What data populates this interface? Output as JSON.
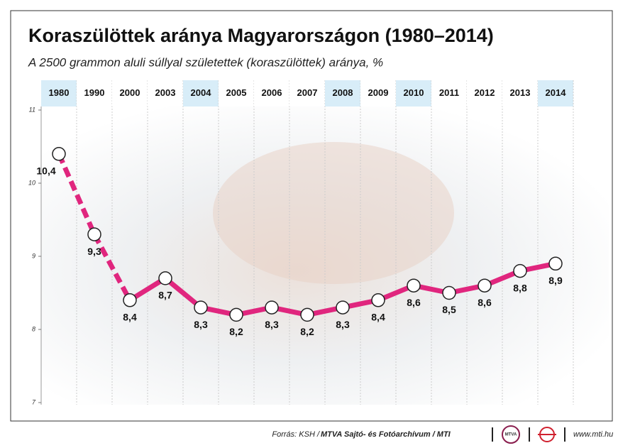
{
  "chart_data": {
    "type": "line",
    "title": "Koraszülöttek aránya Magyarországon (1980–2014)",
    "subtitle": "A 2500 grammon aluli súllyal születettek (koraszülöttek) aránya, %",
    "categories": [
      "1980",
      "1990",
      "2000",
      "2003",
      "2004",
      "2005",
      "2006",
      "2007",
      "2008",
      "2009",
      "2010",
      "2011",
      "2012",
      "2013",
      "2014"
    ],
    "header_highlight": [
      true,
      false,
      false,
      false,
      true,
      false,
      false,
      false,
      true,
      false,
      true,
      false,
      false,
      false,
      true
    ],
    "values": [
      10.4,
      9.3,
      8.4,
      8.7,
      8.3,
      8.2,
      8.3,
      8.2,
      8.3,
      8.4,
      8.6,
      8.5,
      8.6,
      8.8,
      8.9
    ],
    "value_labels": [
      "10,4",
      "9,3",
      "8,4",
      "8,7",
      "8,3",
      "8,2",
      "8,3",
      "8,2",
      "8,3",
      "8,4",
      "8,6",
      "8,5",
      "8,6",
      "8,8",
      "8,9"
    ],
    "segment_styles": [
      "dashed",
      "dashed",
      "solid",
      "solid",
      "solid",
      "solid",
      "solid",
      "solid",
      "solid",
      "solid",
      "solid",
      "solid",
      "solid",
      "solid"
    ],
    "color": "#e0267e",
    "ylim": [
      7,
      11
    ],
    "yticks": [
      7,
      8,
      9,
      10,
      11
    ],
    "source": "Forrás: KSH / ",
    "source_bold": "MTVA Sajtó- és Fotóarchívum / MTI",
    "logo_text": "MTVA",
    "website": "www.mti.hu"
  }
}
